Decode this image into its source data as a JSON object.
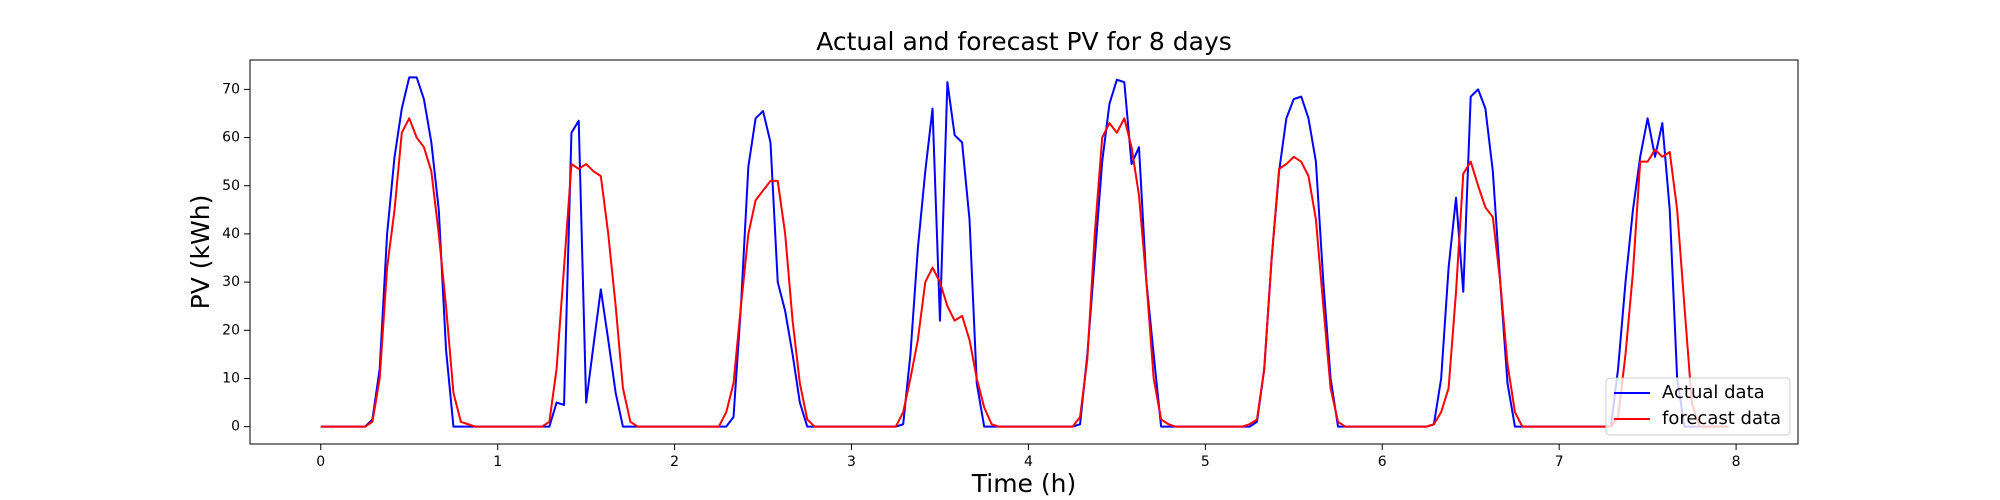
{
  "chart_data": {
    "type": "line",
    "title": "Actual and forecast PV for 8 days",
    "xlabel": "Time (h)",
    "ylabel": "PV (kWh)",
    "x": [
      0,
      0.042,
      0.083,
      0.125,
      0.167,
      0.208,
      0.25,
      0.292,
      0.333,
      0.375,
      0.417,
      0.458,
      0.5,
      0.542,
      0.583,
      0.625,
      0.667,
      0.708,
      0.75,
      0.792,
      0.833,
      0.875,
      0.917,
      0.958,
      1,
      1.042,
      1.083,
      1.125,
      1.167,
      1.208,
      1.25,
      1.292,
      1.333,
      1.375,
      1.417,
      1.458,
      1.5,
      1.542,
      1.583,
      1.625,
      1.667,
      1.708,
      1.75,
      1.792,
      1.833,
      1.875,
      1.917,
      1.958,
      2,
      2.042,
      2.083,
      2.125,
      2.167,
      2.208,
      2.25,
      2.292,
      2.333,
      2.375,
      2.417,
      2.458,
      2.5,
      2.542,
      2.583,
      2.625,
      2.667,
      2.708,
      2.75,
      2.792,
      2.833,
      2.875,
      2.917,
      2.958,
      3,
      3.042,
      3.083,
      3.125,
      3.167,
      3.208,
      3.25,
      3.292,
      3.333,
      3.375,
      3.417,
      3.458,
      3.5,
      3.542,
      3.583,
      3.625,
      3.667,
      3.708,
      3.75,
      3.792,
      3.833,
      3.875,
      3.917,
      3.958,
      4,
      4.042,
      4.083,
      4.125,
      4.167,
      4.208,
      4.25,
      4.292,
      4.333,
      4.375,
      4.417,
      4.458,
      4.5,
      4.542,
      4.583,
      4.625,
      4.667,
      4.708,
      4.75,
      4.792,
      4.833,
      4.875,
      4.917,
      4.958,
      5,
      5.042,
      5.083,
      5.125,
      5.167,
      5.208,
      5.25,
      5.292,
      5.333,
      5.375,
      5.417,
      5.458,
      5.5,
      5.542,
      5.583,
      5.625,
      5.667,
      5.708,
      5.75,
      5.792,
      5.833,
      5.875,
      5.917,
      5.958,
      6,
      6.042,
      6.083,
      6.125,
      6.167,
      6.208,
      6.25,
      6.292,
      6.333,
      6.375,
      6.417,
      6.458,
      6.5,
      6.542,
      6.583,
      6.625,
      6.667,
      6.708,
      6.75,
      6.792,
      6.833,
      6.875,
      6.917,
      6.958,
      7,
      7.042,
      7.083,
      7.125,
      7.167,
      7.208,
      7.25,
      7.292,
      7.333,
      7.375,
      7.417,
      7.458,
      7.5,
      7.542,
      7.583,
      7.625,
      7.667,
      7.708,
      7.75,
      7.792,
      7.833,
      7.875,
      7.917,
      7.958
    ],
    "series": [
      {
        "name": "Actual data",
        "color": "#0000ff",
        "values": [
          0,
          0,
          0,
          0,
          0,
          0,
          0,
          1.5,
          12,
          40,
          56,
          66,
          72.5,
          72.5,
          68,
          59,
          45,
          16,
          0,
          0,
          0,
          0,
          0,
          0,
          0,
          0,
          0,
          0,
          0,
          0,
          0,
          0,
          5,
          4.5,
          61,
          63.5,
          5,
          17,
          28.5,
          18,
          7,
          0,
          0,
          0,
          0,
          0,
          0,
          0,
          0,
          0,
          0,
          0,
          0,
          0,
          0,
          0,
          2,
          25,
          54,
          64,
          65.5,
          59,
          30,
          24,
          15,
          5,
          0,
          0,
          0,
          0,
          0,
          0,
          0,
          0,
          0,
          0,
          0,
          0,
          0,
          0.5,
          15,
          37,
          53,
          66,
          22,
          71.5,
          60.5,
          59,
          43,
          9,
          0,
          0,
          0,
          0,
          0,
          0,
          0,
          0,
          0,
          0,
          0,
          0,
          0,
          0.5,
          15,
          35,
          55,
          67,
          72,
          71.5,
          54.5,
          58,
          30,
          15,
          0,
          0,
          0,
          0,
          0,
          0,
          0,
          0,
          0,
          0,
          0,
          0,
          0,
          1,
          12,
          35,
          53,
          64,
          68,
          68.5,
          64,
          55,
          30,
          10,
          0,
          0,
          0,
          0,
          0,
          0,
          0,
          0,
          0,
          0,
          0,
          0,
          0,
          0.5,
          10,
          33,
          47.5,
          28,
          68.5,
          70,
          66,
          53,
          30,
          9,
          0,
          0,
          0,
          0,
          0,
          0,
          0,
          0,
          0,
          0,
          0,
          0,
          0,
          0,
          12,
          30,
          45,
          56,
          64,
          56,
          63,
          45,
          10,
          0,
          0,
          0,
          0,
          0,
          0,
          0
        ]
      },
      {
        "name": "forecast data",
        "color": "#ff0000",
        "values": [
          0,
          0,
          0,
          0,
          0,
          0,
          0,
          1,
          10,
          33,
          45,
          61,
          64,
          60,
          58,
          53,
          40,
          25,
          7,
          1,
          0.5,
          0,
          0,
          0,
          0,
          0,
          0,
          0,
          0,
          0,
          0,
          1,
          12,
          33,
          54.5,
          53.5,
          54.5,
          53,
          52,
          40,
          25,
          8,
          1,
          0,
          0,
          0,
          0,
          0,
          0,
          0,
          0,
          0,
          0,
          0,
          0,
          3,
          9,
          25,
          40,
          47,
          49,
          51,
          51,
          40,
          22,
          9,
          1.5,
          0,
          0,
          0,
          0,
          0,
          0,
          0,
          0,
          0,
          0,
          0,
          0,
          3,
          10,
          18,
          30,
          33,
          30,
          25,
          22,
          23,
          18,
          10,
          4,
          0.5,
          0,
          0,
          0,
          0,
          0,
          0,
          0,
          0,
          0,
          0,
          0,
          2,
          14,
          40,
          60,
          63,
          61,
          64,
          58,
          48,
          30,
          10,
          1.5,
          0.5,
          0,
          0,
          0,
          0,
          0,
          0,
          0,
          0,
          0,
          0,
          0.5,
          1.5,
          12,
          35,
          53.5,
          54.5,
          56,
          55,
          52,
          43,
          25,
          8,
          1,
          0,
          0,
          0,
          0,
          0,
          0,
          0,
          0,
          0,
          0,
          0,
          0,
          0.5,
          3,
          8,
          28,
          52.5,
          55,
          50,
          45.5,
          43.5,
          30,
          13,
          3,
          0,
          0,
          0,
          0,
          0,
          0,
          0,
          0,
          0,
          0,
          0,
          0,
          0,
          2,
          15,
          32,
          55,
          55,
          57.5,
          56,
          57,
          45,
          25,
          5,
          0,
          0,
          0,
          0,
          0
        ]
      }
    ],
    "xlim": [
      -0.4,
      8.35
    ],
    "ylim": [
      -3.6,
      76.1
    ],
    "xticks": [
      0,
      1,
      2,
      3,
      4,
      5,
      6,
      7,
      8
    ],
    "yticks": [
      0,
      10,
      20,
      30,
      40,
      50,
      60,
      70
    ],
    "legend": "lower right"
  }
}
